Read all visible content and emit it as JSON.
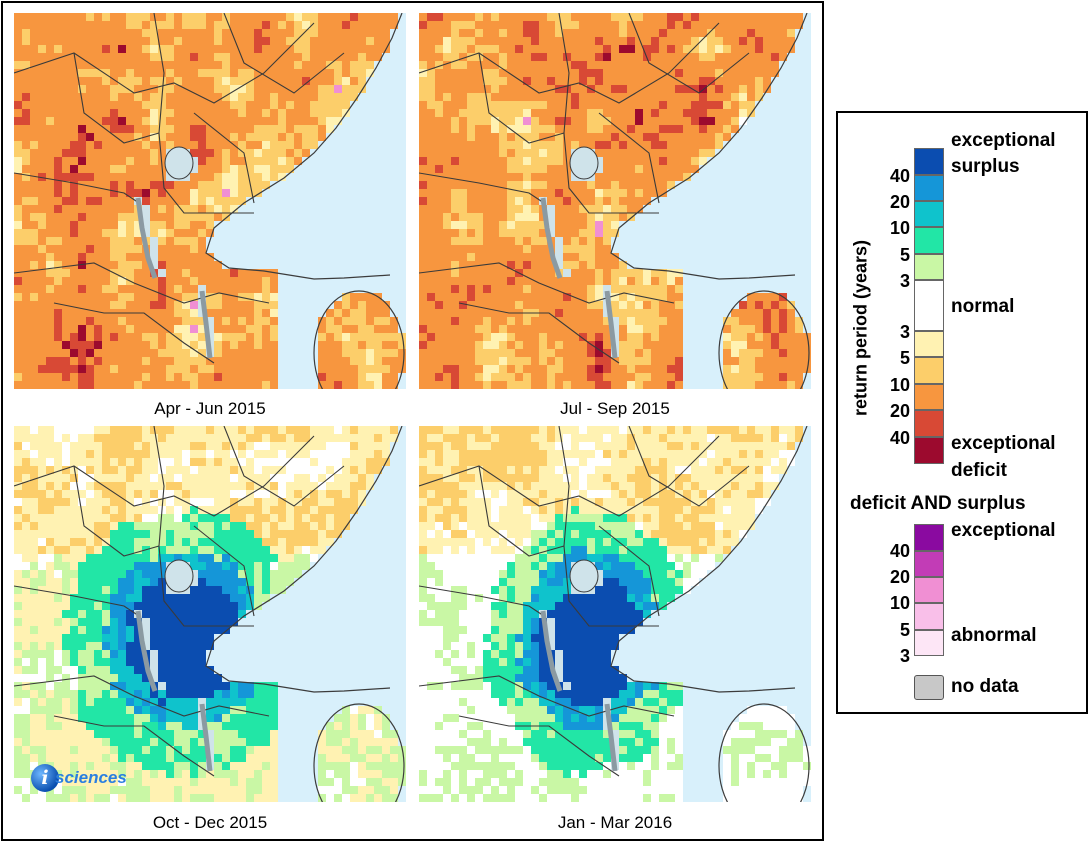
{
  "panels": [
    {
      "caption": "Apr - Jun 2015",
      "variant": "deficit-a"
    },
    {
      "caption": "Jul - Sep 2015",
      "variant": "deficit-b"
    },
    {
      "caption": "Oct - Dec 2015",
      "variant": "surplus-a"
    },
    {
      "caption": "Jan - Mar 2016",
      "variant": "surplus-b"
    }
  ],
  "logo": {
    "letter": "i",
    "text": "sciences"
  },
  "legend": {
    "axis_title": "return period (years)",
    "main_labels": {
      "surplus_top": "exceptional",
      "surplus_bottom": "surplus",
      "normal": "normal",
      "deficit_top": "exceptional",
      "deficit_bottom": "deficit"
    },
    "main_ticks": [
      "40",
      "20",
      "10",
      "5",
      "3",
      "3",
      "5",
      "10",
      "20",
      "40"
    ],
    "surplus_colors": [
      "#0b4db0",
      "#1596d8",
      "#0fc3cc",
      "#22e6a6",
      "#c9f7a5"
    ],
    "normal_color": "#ffffff",
    "deficit_colors": [
      "#fff2b2",
      "#fcce6a",
      "#f7963f",
      "#d84935",
      "#9c0a2e"
    ],
    "both_title": "deficit AND surplus",
    "both_labels": {
      "top": "exceptional",
      "bottom": "abnormal"
    },
    "both_ticks": [
      "40",
      "20",
      "10",
      "5",
      "3"
    ],
    "both_colors": [
      "#8a0aa0",
      "#c23cb6",
      "#f08fd3",
      "#f9bfe9",
      "#fde6f6"
    ],
    "nodata_label": "no data",
    "nodata_color": "#c8c8c8"
  }
}
